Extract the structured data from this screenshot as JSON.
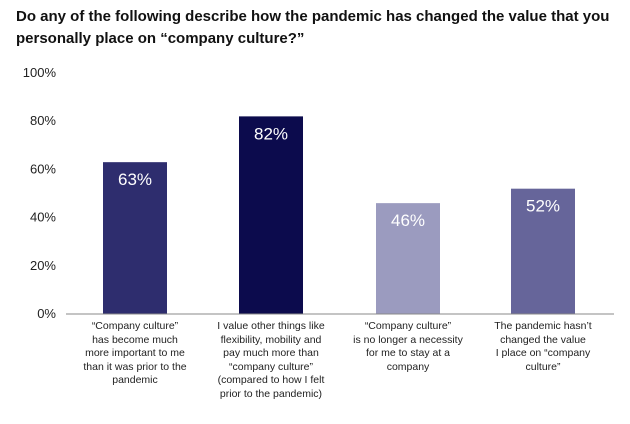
{
  "chart_data": {
    "type": "bar",
    "title": "Do any of the following describe how the pandemic has changed the value that you personally place on “company culture?”",
    "categories": [
      "“Company culture” has become much more important to me than it was prior to the pandemic",
      "I value other things like flexibility, mobility and pay much more than “company culture” (compared to how I felt prior to the pandemic)",
      "“Company culture” is no longer a necessity for me to stay at a company",
      "The pandemic hasn’t changed the value I place on “company culture”"
    ],
    "category_lines": [
      [
        "“Company culture”",
        "has become much",
        "more important to me",
        "than it was prior to the",
        "pandemic"
      ],
      [
        "I value other things like",
        "flexibility, mobility and",
        "pay much more than",
        "“company culture”",
        "(compared to how I felt",
        "prior to the pandemic)"
      ],
      [
        "“Company culture”",
        "is no longer a necessity",
        "for me to stay at a",
        "company"
      ],
      [
        "The pandemic hasn’t",
        "changed the value",
        "I place on “company",
        "culture”"
      ]
    ],
    "values": [
      63,
      82,
      46,
      52
    ],
    "data_labels": [
      "63%",
      "82%",
      "46%",
      "52%"
    ],
    "colors": [
      "#2e2d6e",
      "#0c0b4d",
      "#9b9bbf",
      "#66659a"
    ],
    "yticks": [
      "0%",
      "20%",
      "40%",
      "60%",
      "80%",
      "100%"
    ],
    "ylim": [
      0,
      100
    ],
    "xlabel": "",
    "ylabel": "",
    "grid": false
  }
}
